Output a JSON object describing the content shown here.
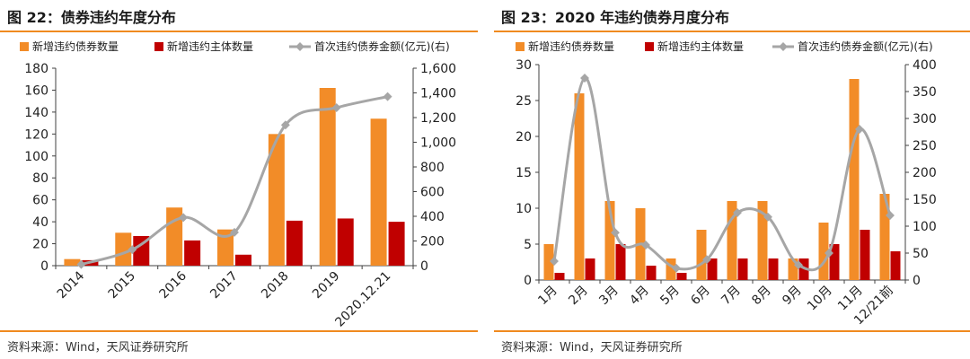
{
  "figures": [
    {
      "title": "图 22：债券违约年度分布",
      "source": "资料来源：Wind，天风证券研究所",
      "legend": [
        "新增违约债券数量",
        "新增违约主体数量",
        "首次违约债券金额(亿元)(右)"
      ]
    },
    {
      "title": "图 23：2020 年违约债券月度分布",
      "source": "资料来源：Wind，天风证券研究所",
      "legend": [
        "新增违约债券数量",
        "新增违约主体数量",
        "首次违约债券金额(亿元)(右)"
      ]
    }
  ],
  "colors": {
    "bonds": "#f28c28",
    "issuers": "#c00000",
    "amount": "#a6a6a6",
    "accent_rule": "#f08a1f"
  },
  "chart_data": [
    {
      "type": "bar",
      "categories": [
        "2014",
        "2015",
        "2016",
        "2017",
        "2018",
        "2019",
        "2020.12.21"
      ],
      "series": [
        {
          "name": "新增违约债券数量",
          "type": "bar",
          "axis": "left",
          "values": [
            6,
            30,
            53,
            33,
            120,
            162,
            134
          ]
        },
        {
          "name": "新增违约主体数量",
          "type": "bar",
          "axis": "left",
          "values": [
            5,
            27,
            23,
            10,
            41,
            43,
            40
          ]
        },
        {
          "name": "首次违约债券金额(亿元)(右)",
          "type": "line",
          "axis": "right",
          "values": [
            10,
            130,
            390,
            270,
            1140,
            1280,
            1370
          ]
        }
      ],
      "ylim": [
        0,
        180
      ],
      "yticks": [
        0,
        20,
        40,
        60,
        80,
        100,
        120,
        140,
        160,
        180
      ],
      "y2lim": [
        0,
        1600
      ],
      "y2ticks": [
        "0",
        "200",
        "400",
        "600",
        "800",
        "1,000",
        "1,200",
        "1,400",
        "1,600"
      ],
      "xlabel_rotation": -45,
      "legend_position": "top",
      "grid": false
    },
    {
      "type": "bar",
      "categories": [
        "1月",
        "2月",
        "3月",
        "4月",
        "5月",
        "6月",
        "7月",
        "8月",
        "9月",
        "10月",
        "11月",
        "12/21前"
      ],
      "series": [
        {
          "name": "新增违约债券数量",
          "type": "bar",
          "axis": "left",
          "values": [
            5,
            26,
            11,
            10,
            3,
            7,
            11,
            11,
            3,
            8,
            28,
            12
          ]
        },
        {
          "name": "新增违约主体数量",
          "type": "bar",
          "axis": "left",
          "values": [
            1,
            3,
            5,
            2,
            1,
            3,
            3,
            3,
            3,
            5,
            7,
            4
          ]
        },
        {
          "name": "首次违约债券金额(亿元)(右)",
          "type": "line",
          "axis": "right",
          "values": [
            35,
            375,
            88,
            65,
            22,
            38,
            125,
            117,
            28,
            50,
            280,
            120
          ]
        }
      ],
      "ylim": [
        0,
        30
      ],
      "yticks": [
        0,
        5,
        10,
        15,
        20,
        25,
        30
      ],
      "y2lim": [
        0,
        400
      ],
      "y2ticks": [
        "0",
        "50",
        "100",
        "150",
        "200",
        "250",
        "300",
        "350",
        "400"
      ],
      "xlabel_rotation": -45,
      "legend_position": "top",
      "grid": false
    }
  ]
}
